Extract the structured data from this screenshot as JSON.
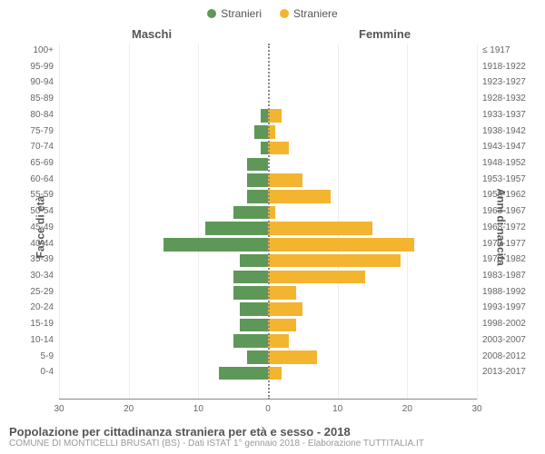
{
  "legend": {
    "male": {
      "label": "Stranieri",
      "color": "#5e9858"
    },
    "female": {
      "label": "Straniere",
      "color": "#f3b530"
    }
  },
  "headers": {
    "male": "Maschi",
    "female": "Femmine"
  },
  "axis_titles": {
    "left": "Fasce di età",
    "right": "Anni di nascita"
  },
  "chart": {
    "type": "population-pyramid",
    "xmax": 30,
    "xticks": [
      30,
      20,
      10,
      0,
      10,
      20,
      30
    ],
    "bar_color_male": "#5e9858",
    "bar_color_female": "#f3b530",
    "gridline_color": "#eeeeee",
    "background_color": "#ffffff",
    "rows": [
      {
        "age": "100+",
        "years": "≤ 1917",
        "m": 0,
        "f": 0
      },
      {
        "age": "95-99",
        "years": "1918-1922",
        "m": 0,
        "f": 0
      },
      {
        "age": "90-94",
        "years": "1923-1927",
        "m": 0,
        "f": 0
      },
      {
        "age": "85-89",
        "years": "1928-1932",
        "m": 0,
        "f": 0
      },
      {
        "age": "80-84",
        "years": "1933-1937",
        "m": 1,
        "f": 2
      },
      {
        "age": "75-79",
        "years": "1938-1942",
        "m": 2,
        "f": 1
      },
      {
        "age": "70-74",
        "years": "1943-1947",
        "m": 1,
        "f": 3
      },
      {
        "age": "65-69",
        "years": "1948-1952",
        "m": 3,
        "f": 0
      },
      {
        "age": "60-64",
        "years": "1953-1957",
        "m": 3,
        "f": 5
      },
      {
        "age": "55-59",
        "years": "1958-1962",
        "m": 3,
        "f": 9
      },
      {
        "age": "50-54",
        "years": "1963-1967",
        "m": 5,
        "f": 1
      },
      {
        "age": "45-49",
        "years": "1968-1972",
        "m": 9,
        "f": 15
      },
      {
        "age": "40-44",
        "years": "1973-1977",
        "m": 15,
        "f": 21
      },
      {
        "age": "35-39",
        "years": "1978-1982",
        "m": 4,
        "f": 19
      },
      {
        "age": "30-34",
        "years": "1983-1987",
        "m": 5,
        "f": 14
      },
      {
        "age": "25-29",
        "years": "1988-1992",
        "m": 5,
        "f": 4
      },
      {
        "age": "20-24",
        "years": "1993-1997",
        "m": 4,
        "f": 5
      },
      {
        "age": "15-19",
        "years": "1998-2002",
        "m": 4,
        "f": 4
      },
      {
        "age": "10-14",
        "years": "2003-2007",
        "m": 5,
        "f": 3
      },
      {
        "age": "5-9",
        "years": "2008-2012",
        "m": 3,
        "f": 7
      },
      {
        "age": "0-4",
        "years": "2013-2017",
        "m": 7,
        "f": 2
      }
    ]
  },
  "title": "Popolazione per cittadinanza straniera per età e sesso - 2018",
  "subtitle": "COMUNE DI MONTICELLI BRUSATI (BS) - Dati ISTAT 1° gennaio 2018 - Elaborazione TUTTITALIA.IT"
}
